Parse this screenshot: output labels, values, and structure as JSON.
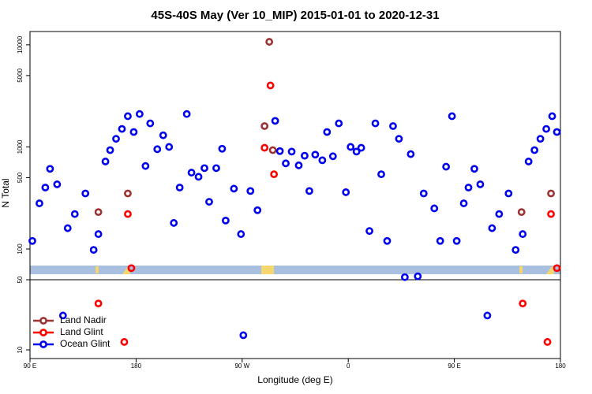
{
  "chart_data": [
    {
      "type": "scatter",
      "title": "45S-40S May (Ver 10_MIP)   2015-01-01 to 2020-12-31",
      "ylabel": "N Total",
      "log_y": true,
      "xlim": [
        90,
        540
      ],
      "ylim": [
        50,
        13500
      ],
      "yticks": [
        100,
        500,
        1000,
        5000,
        10000
      ],
      "series": [
        {
          "color": "#9b3333",
          "x": [
            293,
            289,
            296,
            148,
            173,
            507,
            532
          ],
          "values": [
            10700,
            1600,
            930,
            230,
            350,
            230,
            350
          ]
        },
        {
          "color": "#ff0000",
          "x": [
            294,
            289,
            297,
            173,
            176,
            532,
            537
          ],
          "values": [
            4000,
            980,
            540,
            220,
            65,
            220,
            65
          ]
        },
        {
          "color": "#0000ee",
          "x": [
            92,
            98,
            103,
            107,
            113,
            122,
            128,
            137,
            144,
            148,
            154,
            158,
            163,
            168,
            173,
            178,
            183,
            188,
            192,
            198,
            203,
            208,
            212,
            217,
            223,
            227,
            233,
            238,
            242,
            248,
            253,
            256,
            263,
            269,
            277,
            283,
            298,
            302,
            307,
            312,
            318,
            323,
            327,
            332,
            338,
            342,
            347,
            352,
            358,
            362,
            367,
            371,
            378,
            383,
            388,
            393,
            398,
            403,
            408,
            413,
            419,
            424,
            433,
            438,
            443,
            448,
            452,
            458,
            462,
            467,
            472,
            482,
            488,
            496,
            502,
            508,
            513,
            518,
            523,
            528,
            533,
            537
          ],
          "values": [
            120,
            280,
            400,
            610,
            430,
            160,
            220,
            350,
            98,
            140,
            720,
            930,
            1200,
            1500,
            2000,
            1400,
            2100,
            650,
            1700,
            950,
            1300,
            1000,
            180,
            400,
            2100,
            560,
            510,
            620,
            290,
            620,
            960,
            190,
            390,
            140,
            370,
            240,
            1800,
            910,
            690,
            900,
            660,
            820,
            370,
            840,
            740,
            1400,
            810,
            1700,
            360,
            1000,
            900,
            980,
            150,
            1700,
            540,
            120,
            1600,
            1200,
            53,
            850,
            54,
            350,
            250,
            120,
            640,
            2000,
            120,
            280,
            400,
            610,
            430,
            160,
            220,
            350,
            98,
            140,
            720,
            930,
            1200,
            1500,
            2000,
            1400
          ]
        }
      ]
    },
    {
      "type": "scatter",
      "xlabel": "Longitude (deg E)",
      "log_y": true,
      "xlim": [
        90,
        540
      ],
      "ylim": [
        8.2,
        50
      ],
      "yticks": [
        10,
        50
      ],
      "xticks": [
        {
          "value": 90,
          "label": "90 E"
        },
        180,
        {
          "value": 270,
          "label": "90 W"
        },
        {
          "value": 360,
          "label": "0"
        },
        {
          "value": 450,
          "label": "90 E"
        },
        {
          "value": 540,
          "label": "180"
        }
      ],
      "legend": "bottom-left",
      "series": [
        {
          "name": "Land Nadir",
          "color": "#9b3333",
          "x": [],
          "values": []
        },
        {
          "name": "Land Glint",
          "color": "#ff0000",
          "x": [
            148,
            170,
            508,
            529
          ],
          "values": [
            29,
            12,
            29,
            12
          ]
        },
        {
          "name": "Ocean Glint",
          "color": "#0000ee",
          "x": [
            118,
            271,
            478
          ],
          "values": [
            22,
            14,
            22
          ]
        }
      ]
    }
  ]
}
